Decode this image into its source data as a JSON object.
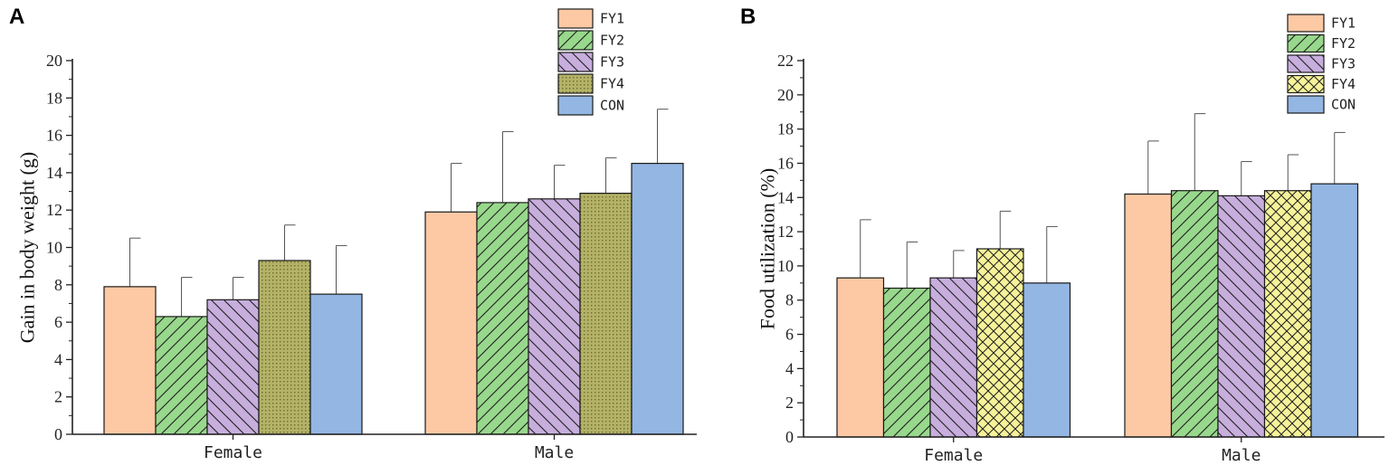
{
  "chart_data": [
    {
      "panel": "A",
      "type": "bar",
      "title": "",
      "xlabel": "",
      "ylabel": "Gain in body weight (g)",
      "ylim": [
        0,
        20
      ],
      "yticks": [
        0,
        2,
        4,
        6,
        8,
        10,
        12,
        14,
        16,
        18,
        20
      ],
      "categories": [
        "Female",
        "Male"
      ],
      "legend_position": "top-right",
      "grid": false,
      "series": [
        {
          "name": "FY1",
          "color": "#FDC9A4",
          "pattern": "none",
          "values": [
            7.9,
            11.9
          ],
          "errors": [
            2.6,
            2.6
          ]
        },
        {
          "name": "FY2",
          "color": "#98D88C",
          "pattern": "diag-right",
          "values": [
            6.3,
            12.4
          ],
          "errors": [
            2.1,
            3.8
          ]
        },
        {
          "name": "FY3",
          "color": "#C7AEDD",
          "pattern": "diag-left",
          "values": [
            7.2,
            12.6
          ],
          "errors": [
            1.2,
            1.8
          ]
        },
        {
          "name": "FY4",
          "color": "#B3B267",
          "pattern": "dots",
          "values": [
            9.3,
            12.9
          ],
          "errors": [
            1.9,
            1.9
          ]
        },
        {
          "name": "CON",
          "color": "#93B6E3",
          "pattern": "none",
          "values": [
            7.5,
            14.5
          ],
          "errors": [
            2.6,
            2.9
          ]
        }
      ]
    },
    {
      "panel": "B",
      "type": "bar",
      "title": "",
      "xlabel": "",
      "ylabel": "Food utilization (%)",
      "ylim": [
        0,
        22
      ],
      "yticks": [
        0,
        2,
        4,
        6,
        8,
        10,
        12,
        14,
        16,
        18,
        20,
        22
      ],
      "categories": [
        "Female",
        "Male"
      ],
      "legend_position": "top-right",
      "grid": false,
      "series": [
        {
          "name": "FY1",
          "color": "#FDC9A4",
          "pattern": "none",
          "values": [
            9.3,
            14.2
          ],
          "errors": [
            3.4,
            3.1
          ]
        },
        {
          "name": "FY2",
          "color": "#98D88C",
          "pattern": "diag-right",
          "values": [
            8.7,
            14.4
          ],
          "errors": [
            2.7,
            4.5
          ]
        },
        {
          "name": "FY3",
          "color": "#C7AEDD",
          "pattern": "diag-left",
          "values": [
            9.3,
            14.1
          ],
          "errors": [
            1.6,
            2.0
          ]
        },
        {
          "name": "FY4",
          "color": "#F6F29A",
          "pattern": "crosshatch",
          "values": [
            11.0,
            14.4
          ],
          "errors": [
            2.2,
            2.1
          ]
        },
        {
          "name": "CON",
          "color": "#93B6E3",
          "pattern": "none",
          "values": [
            9.0,
            14.8
          ],
          "errors": [
            3.3,
            3.0
          ]
        }
      ]
    }
  ]
}
